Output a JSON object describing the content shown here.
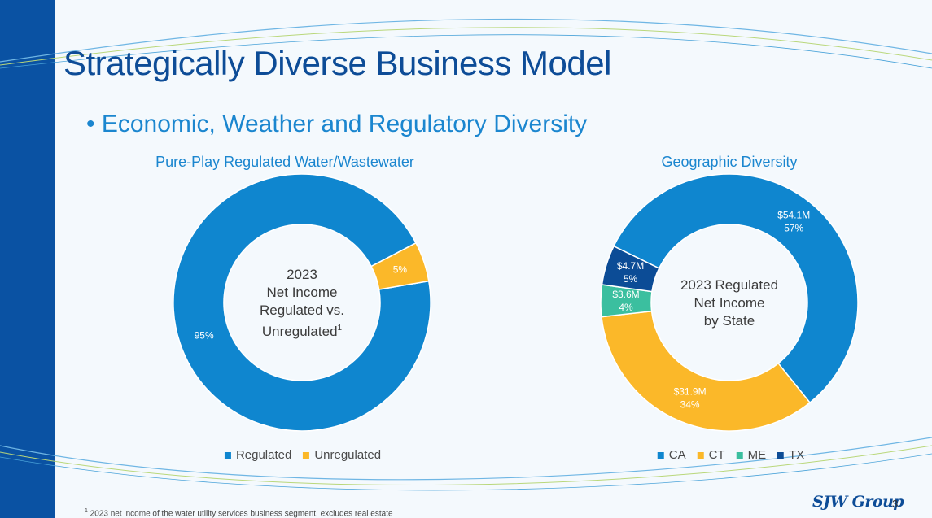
{
  "slide": {
    "title": "Strategically Diverse Business Model",
    "bullet": "• Economic, Weather and Regulatory Diversity",
    "footnote_marker": "1",
    "footnote_text": " 2023 net income of the water utility services business segment, excludes real estate",
    "logo_text": "SJW Group",
    "page_number": "3",
    "colors": {
      "side_bar": "#0a52a3",
      "title": "#0d4c97",
      "accent": "#1b86cf"
    }
  },
  "left_chart": {
    "title": "Pure-Play Regulated Water/Wastewater",
    "center_lines": [
      "2023",
      "Net Income",
      "Regulated vs."
    ],
    "center_last_line": "Unregulated",
    "center_footnote_marker": "1"
  },
  "right_chart": {
    "title": "Geographic Diversity",
    "center_lines": [
      "2023 Regulated",
      "Net Income",
      "by State"
    ]
  },
  "chart_data": [
    {
      "type": "pie",
      "variant": "donut",
      "title": "Pure-Play Regulated Water/Wastewater",
      "slices": [
        {
          "name": "Regulated",
          "value": 95,
          "label": "95%",
          "color": "#0f86cf"
        },
        {
          "name": "Unregulated",
          "value": 5,
          "label": "5%",
          "color": "#fbb829"
        }
      ],
      "legend": [
        "Regulated",
        "Unregulated"
      ],
      "legend_position": "bottom"
    },
    {
      "type": "pie",
      "variant": "donut",
      "title": "Geographic Diversity",
      "slices": [
        {
          "name": "CA",
          "value": 57,
          "amount": "$54.1M",
          "label": "57%",
          "color": "#0f86cf"
        },
        {
          "name": "CT",
          "value": 34,
          "amount": "$31.9M",
          "label": "34%",
          "color": "#fbb829"
        },
        {
          "name": "ME",
          "value": 4,
          "amount": "$3.6M",
          "label": "4%",
          "color": "#3bbf9f"
        },
        {
          "name": "TX",
          "value": 5,
          "amount": "$4.7M",
          "label": "5%",
          "color": "#0c4c96"
        }
      ],
      "legend": [
        "CA",
        "CT",
        "ME",
        "TX"
      ],
      "legend_position": "bottom"
    }
  ]
}
